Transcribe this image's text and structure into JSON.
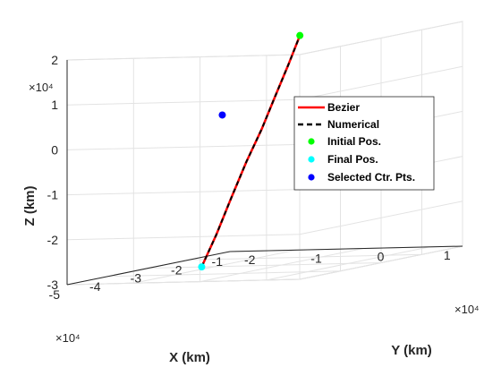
{
  "chart_data": {
    "type": "line",
    "title": "",
    "xlabel": "X (km)",
    "ylabel": "Y (km)",
    "zlabel": "Z (km)",
    "x_ticks": [
      "-5",
      "-4",
      "-3",
      "-2",
      "-1"
    ],
    "y_ticks": [
      "-2",
      "-1",
      "0",
      "1"
    ],
    "z_ticks": [
      "-3",
      "-2",
      "-1",
      "0",
      "1",
      "2"
    ],
    "x_multiplier": "×10⁴",
    "y_multiplier": "×10⁴",
    "z_multiplier": "×10⁴",
    "xlim": [
      -50000,
      -10000
    ],
    "ylim": [
      -20000,
      15000
    ],
    "zlim": [
      -30000,
      20000
    ],
    "grid": true,
    "legend_position": "right",
    "colors": {
      "bezier": "#ff0000",
      "numerical": "#000000",
      "initial": "#00ff00",
      "final": "#00ffff",
      "control": "#0000ff"
    },
    "series": [
      {
        "name": "Bezier",
        "style": "solid-line",
        "points": [
          [
            -30000,
            -12000,
            -30000
          ],
          [
            -29700,
            -10000,
            -23000
          ],
          [
            -29300,
            -8000,
            -15000
          ],
          [
            -28800,
            -6000,
            -7000
          ],
          [
            -28000,
            -4200,
            0
          ],
          [
            -27000,
            -2800,
            7000
          ],
          [
            -25600,
            -1600,
            14000
          ],
          [
            -24000,
            -900,
            20000
          ]
        ]
      },
      {
        "name": "Numerical",
        "style": "dashed-line",
        "points": [
          [
            -30000,
            -12000,
            -30000
          ],
          [
            -29700,
            -10000,
            -23000
          ],
          [
            -29300,
            -8000,
            -15000
          ],
          [
            -28800,
            -6000,
            -7000
          ],
          [
            -28000,
            -4200,
            0
          ],
          [
            -27000,
            -2800,
            7000
          ],
          [
            -25600,
            -1600,
            14000
          ],
          [
            -24000,
            -900,
            20000
          ]
        ]
      },
      {
        "name": "Initial Pos.",
        "style": "marker",
        "points": [
          [
            -24000,
            -900,
            20000
          ]
        ]
      },
      {
        "name": "Final Pos.",
        "style": "marker",
        "points": [
          [
            -30000,
            -12000,
            -30000
          ]
        ]
      },
      {
        "name": "Selected Ctr. Pts.",
        "style": "marker",
        "points": [
          [
            -38000,
            -4000,
            5000
          ]
        ]
      }
    ]
  }
}
